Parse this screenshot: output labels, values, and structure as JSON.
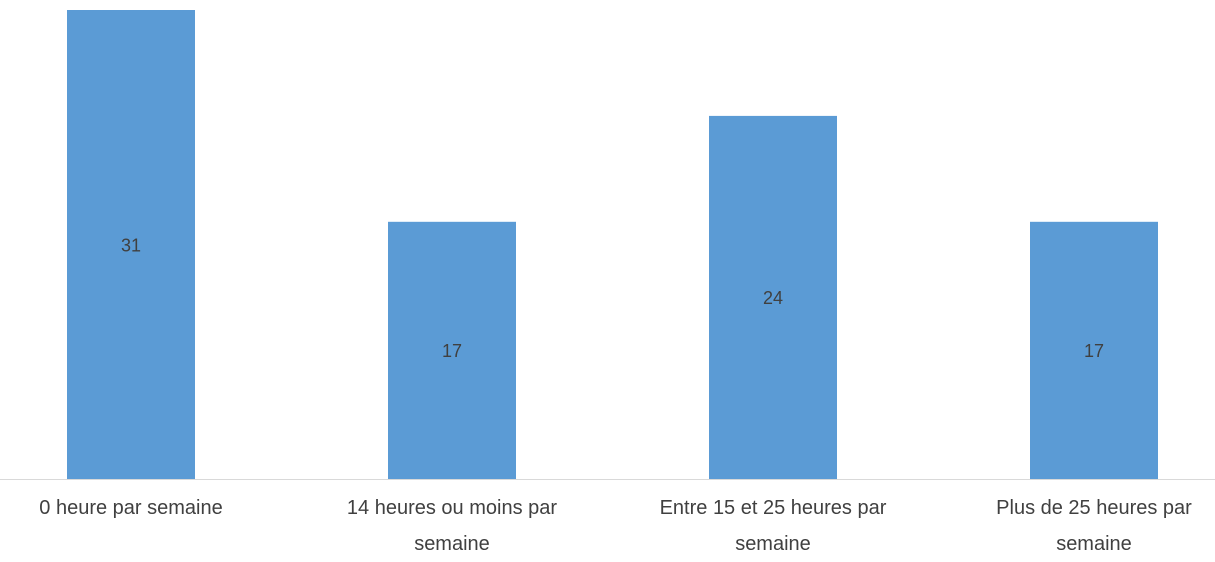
{
  "chart_data": {
    "type": "bar",
    "categories": [
      "0 heure par semaine",
      "14 heures ou moins par semaine",
      "Entre 15 et 25 heures par semaine",
      "Plus de 25 heures par semaine"
    ],
    "values": [
      31,
      17,
      24,
      17
    ],
    "color": "#5b9bd5"
  }
}
